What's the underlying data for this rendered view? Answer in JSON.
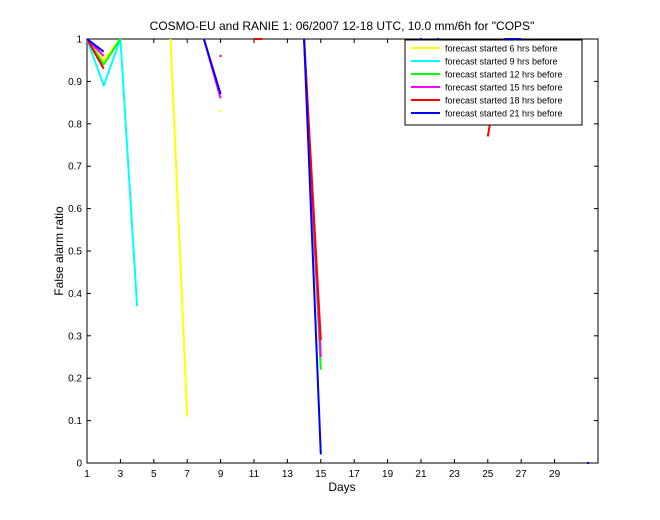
{
  "chart_data": {
    "type": "line",
    "title": "COSMO-EU and RANIE 1: 06/2007 12-18 UTC, 10.0 mm/6h for \"COPS\"",
    "xlabel": "Days",
    "ylabel": "False alarm ratio",
    "xlim": [
      1,
      31.6
    ],
    "ylim": [
      0,
      1
    ],
    "xticks": [
      1,
      3,
      5,
      7,
      9,
      11,
      13,
      15,
      17,
      19,
      21,
      23,
      25,
      27,
      29
    ],
    "yticks": [
      0,
      0.1,
      0.2,
      0.3,
      0.4,
      0.5,
      0.6,
      0.7,
      0.8,
      0.9,
      1
    ],
    "ytick_labels": [
      "0",
      "0.1",
      "0.2",
      "0.3",
      "0.4",
      "0.5",
      "0.6",
      "0.7",
      "0.8",
      "0.9",
      "1"
    ],
    "legend_position": "top-right",
    "series": [
      {
        "name": "forecast started 6 hrs before",
        "color": "#ffff00",
        "segments": [
          [
            [
              1,
              1
            ],
            [
              2,
              0.95
            ],
            [
              3,
              1
            ]
          ],
          [
            [
              6,
              1
            ],
            [
              7,
              0.11
            ]
          ],
          [
            [
              9,
              0.83
            ]
          ],
          [
            [
              14,
              1
            ],
            [
              15,
              0.28
            ]
          ]
        ]
      },
      {
        "name": "forecast started 9 hrs before",
        "color": "#00ffff",
        "segments": [
          [
            [
              1,
              1
            ],
            [
              2,
              0.89
            ],
            [
              3,
              1
            ],
            [
              4,
              0.37
            ]
          ],
          [
            [
              14,
              1
            ],
            [
              15,
              0.26
            ]
          ]
        ]
      },
      {
        "name": "forecast started 12 hrs before",
        "color": "#00ff00",
        "segments": [
          [
            [
              1,
              1
            ],
            [
              2,
              0.94
            ],
            [
              3,
              1
            ]
          ],
          [
            [
              14,
              1
            ],
            [
              15,
              0.22
            ]
          ]
        ]
      },
      {
        "name": "forecast started 15 hrs before",
        "color": "#ff00ff",
        "segments": [
          [
            [
              1,
              1
            ],
            [
              2,
              0.96
            ]
          ],
          [
            [
              8,
              1
            ],
            [
              9,
              0.86
            ]
          ],
          [
            [
              14,
              1
            ],
            [
              15,
              0.25
            ]
          ],
          [
            [
              21,
              1
            ]
          ]
        ]
      },
      {
        "name": "forecast started 18 hrs before",
        "color": "#ff0000",
        "segments": [
          [
            [
              1,
              1
            ],
            [
              2,
              0.93
            ]
          ],
          [
            [
              9,
              0.96
            ]
          ],
          [
            [
              11,
              1
            ],
            [
              11.5,
              1
            ]
          ],
          [
            [
              14,
              1
            ],
            [
              15,
              0.29
            ]
          ],
          [
            [
              25,
              0.77
            ],
            [
              26,
              1
            ],
            [
              27,
              1
            ]
          ]
        ]
      },
      {
        "name": "forecast started 21 hrs before",
        "color": "#0000ff",
        "segments": [
          [
            [
              1,
              1
            ],
            [
              2,
              0.97
            ]
          ],
          [
            [
              8,
              1
            ],
            [
              9,
              0.87
            ]
          ],
          [
            [
              14,
              1
            ],
            [
              15,
              0.02
            ]
          ],
          [
            [
              21,
              1
            ]
          ],
          [
            [
              22,
              1
            ]
          ],
          [
            [
              26,
              1
            ],
            [
              27,
              1
            ]
          ],
          [
            [
              31,
              0
            ]
          ]
        ]
      }
    ]
  }
}
